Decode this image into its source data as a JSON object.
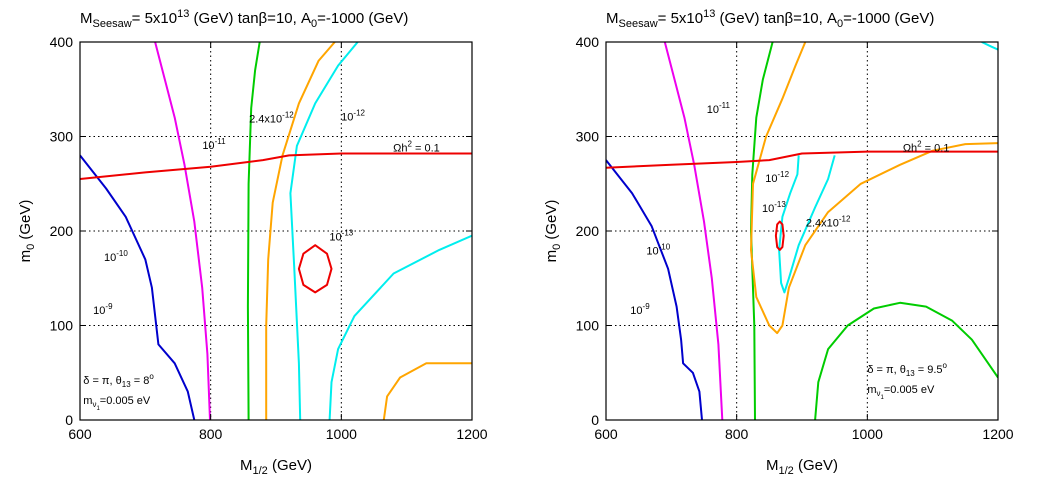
{
  "chart_data": [
    {
      "type": "line",
      "title": {
        "pre": "M",
        "sub": "Seesaw",
        "mid": "= 5x10",
        "sup": "13",
        "post": " (GeV) tanβ=10, A",
        "sub2": "0",
        "post2": "=-1000 (GeV)"
      },
      "xlabel": {
        "pre": "M",
        "sub": "1/2",
        "post": " (GeV)"
      },
      "ylabel": {
        "pre": "m",
        "sub": "0",
        "post": " (GeV)"
      },
      "xlim": [
        600,
        1200
      ],
      "ylim": [
        0,
        400
      ],
      "xticks": [
        "600",
        "800",
        "1000",
        "1200"
      ],
      "yticks": [
        "0",
        "100",
        "200",
        "300",
        "400"
      ],
      "grid": "dotted",
      "annotation": {
        "line1": "δ = π, θ",
        "line1_sub": "13",
        "line1_post": " = 8",
        "line1_sup": "o",
        "line2_pre": "m",
        "line2_sub": "ν",
        "line2_subsub": "1",
        "line2_post": "=0.005 eV"
      },
      "series": [
        {
          "color": "#0000cc",
          "points": [
            [
              600,
              280
            ],
            [
              640,
              245
            ],
            [
              670,
              215
            ],
            [
              700,
              170
            ],
            [
              710,
              140
            ],
            [
              720,
              80
            ],
            [
              745,
              60
            ],
            [
              765,
              30
            ],
            [
              775,
              0
            ]
          ]
        },
        {
          "color": "#ee00ee",
          "points": [
            [
              715,
              400
            ],
            [
              730,
              360
            ],
            [
              745,
              320
            ],
            [
              760,
              270
            ],
            [
              775,
              210
            ],
            [
              787,
              140
            ],
            [
              795,
              70
            ],
            [
              799,
              0
            ]
          ]
        },
        {
          "color": "#00cc00",
          "points": [
            [
              858,
              0
            ],
            [
              857,
              120
            ],
            [
              858,
              250
            ],
            [
              862,
              330
            ],
            [
              868,
              370
            ],
            [
              875,
              400
            ]
          ]
        },
        {
          "color": "#ffa500",
          "points": [
            [
              885,
              0
            ],
            [
              885,
              100
            ],
            [
              888,
              170
            ],
            [
              895,
              230
            ],
            [
              910,
              280
            ],
            [
              935,
              335
            ],
            [
              965,
              380
            ],
            [
              990,
              400
            ]
          ]
        },
        {
          "color": "#ffa500",
          "points": [
            [
              1065,
              0
            ],
            [
              1070,
              25
            ],
            [
              1090,
              45
            ],
            [
              1130,
              60
            ],
            [
              1200,
              60
            ]
          ]
        },
        {
          "color": "#00eeee",
          "points": [
            [
              937,
              0
            ],
            [
              935,
              60
            ],
            [
              928,
              160
            ],
            [
              922,
              240
            ],
            [
              932,
              290
            ],
            [
              960,
              335
            ],
            [
              995,
              375
            ],
            [
              1025,
              400
            ]
          ]
        },
        {
          "color": "#00eeee",
          "points": [
            [
              982,
              0
            ],
            [
              985,
              40
            ],
            [
              995,
              75
            ],
            [
              1020,
              110
            ],
            [
              1080,
              155
            ],
            [
              1150,
              180
            ],
            [
              1200,
              195
            ]
          ]
        },
        {
          "color": "#ee0000",
          "points": [
            [
              600,
              255
            ],
            [
              700,
              262
            ],
            [
              800,
              268
            ],
            [
              880,
              275
            ],
            [
              920,
              280
            ],
            [
              1000,
              282
            ],
            [
              1200,
              282
            ]
          ]
        },
        {
          "color": "#ee0000",
          "closed": true,
          "points": [
            [
              960,
              185
            ],
            [
              978,
              176
            ],
            [
              985,
              160
            ],
            [
              978,
              143
            ],
            [
              960,
              135
            ],
            [
              942,
              143
            ],
            [
              935,
              160
            ],
            [
              942,
              176
            ]
          ]
        }
      ],
      "labels": [
        {
          "x": 635,
          "y": 112,
          "base": "10",
          "exp": "-9"
        },
        {
          "x": 655,
          "y": 168,
          "base": "10",
          "exp": "-10"
        },
        {
          "x": 805,
          "y": 287,
          "base": "10",
          "exp": "-11"
        },
        {
          "x": 893,
          "y": 315,
          "base": "2.4x10",
          "exp": "-12"
        },
        {
          "x": 1018,
          "y": 317,
          "base": "10",
          "exp": "-12"
        },
        {
          "x": 1000,
          "y": 190,
          "base": "10",
          "exp": "-13"
        },
        {
          "x": 1115,
          "y": 284,
          "base": "Ωh",
          "exp": "2",
          "post": " = 0.1"
        }
      ]
    },
    {
      "type": "line",
      "title": {
        "pre": "M",
        "sub": "Seesaw",
        "mid": "= 5x10",
        "sup": "13",
        "post": " (GeV) tanβ=10, A",
        "sub2": "0",
        "post2": "=-1000 (GeV)"
      },
      "xlabel": {
        "pre": "M",
        "sub": "1/2",
        "post": " (GeV)"
      },
      "ylabel": {
        "pre": "m",
        "sub": "0",
        "post": " (GeV)"
      },
      "xlim": [
        600,
        1200
      ],
      "ylim": [
        0,
        400
      ],
      "xticks": [
        "600",
        "800",
        "1000",
        "1200"
      ],
      "yticks": [
        "0",
        "100",
        "200",
        "300",
        "400"
      ],
      "grid": "dotted",
      "annotation": {
        "line1": "δ = π, θ",
        "line1_sub": "13",
        "line1_post": " = 9.5",
        "line1_sup": "o",
        "line2_pre": "m",
        "line2_sub": "ν",
        "line2_subsub": "1",
        "line2_post": "=0.005 eV"
      },
      "series": [
        {
          "color": "#0000cc",
          "points": [
            [
              600,
              275
            ],
            [
              640,
              240
            ],
            [
              670,
              205
            ],
            [
              695,
              160
            ],
            [
              708,
              120
            ],
            [
              715,
              85
            ],
            [
              718,
              60
            ],
            [
              733,
              50
            ],
            [
              743,
              30
            ],
            [
              747,
              0
            ]
          ]
        },
        {
          "color": "#ee00ee",
          "points": [
            [
              690,
              400
            ],
            [
              705,
              360
            ],
            [
              720,
              320
            ],
            [
              735,
              270
            ],
            [
              750,
              210
            ],
            [
              762,
              150
            ],
            [
              772,
              80
            ],
            [
              778,
              0
            ]
          ]
        },
        {
          "color": "#00cc00",
          "points": [
            [
              828,
              0
            ],
            [
              827,
              100
            ],
            [
              822,
              200
            ],
            [
              824,
              260
            ],
            [
              830,
              320
            ],
            [
              840,
              360
            ],
            [
              855,
              400
            ]
          ]
        },
        {
          "color": "#ffa500",
          "points": [
            [
              905,
              400
            ],
            [
              890,
              375
            ],
            [
              870,
              340
            ],
            [
              845,
              300
            ],
            [
              825,
              250
            ],
            [
              822,
              180
            ],
            [
              830,
              130
            ],
            [
              850,
              100
            ],
            [
              862,
              92
            ],
            [
              870,
              100
            ],
            [
              880,
              140
            ],
            [
              905,
              185
            ],
            [
              940,
              220
            ],
            [
              990,
              250
            ],
            [
              1050,
              270
            ],
            [
              1100,
              285
            ],
            [
              1150,
              292
            ],
            [
              1200,
              293
            ]
          ]
        },
        {
          "color": "#00eeee",
          "points": [
            [
              895,
              280
            ],
            [
              893,
              260
            ],
            [
              882,
              240
            ],
            [
              870,
              215
            ],
            [
              865,
              180
            ],
            [
              868,
              145
            ],
            [
              873,
              135
            ],
            [
              880,
              150
            ],
            [
              895,
              185
            ],
            [
              920,
              225
            ],
            [
              940,
              255
            ],
            [
              950,
              280
            ]
          ]
        },
        {
          "color": "#00eeee",
          "points": [
            [
              1175,
              400
            ],
            [
              1190,
              395
            ],
            [
              1200,
              392
            ]
          ]
        },
        {
          "color": "#00cc00",
          "points": [
            [
              920,
              0
            ],
            [
              925,
              40
            ],
            [
              940,
              75
            ],
            [
              970,
              100
            ],
            [
              1010,
              118
            ],
            [
              1050,
              124
            ],
            [
              1090,
              120
            ],
            [
              1130,
              105
            ],
            [
              1160,
              85
            ],
            [
              1185,
              60
            ],
            [
              1200,
              45
            ]
          ]
        },
        {
          "color": "#ee0000",
          "points": [
            [
              600,
              267
            ],
            [
              700,
              270
            ],
            [
              800,
              273
            ],
            [
              850,
              275
            ],
            [
              900,
              282
            ],
            [
              1000,
              284
            ],
            [
              1200,
              284
            ]
          ]
        },
        {
          "color": "#ee0000",
          "closed": true,
          "points": [
            [
              866,
              210
            ],
            [
              870,
              207
            ],
            [
              872,
              195
            ],
            [
              870,
              183
            ],
            [
              866,
              180
            ],
            [
              862,
              183
            ],
            [
              860,
              195
            ],
            [
              862,
              207
            ]
          ]
        }
      ],
      "labels": [
        {
          "x": 652,
          "y": 112,
          "base": "10",
          "exp": "-9"
        },
        {
          "x": 680,
          "y": 175,
          "base": "10",
          "exp": "-10"
        },
        {
          "x": 772,
          "y": 325,
          "base": "10",
          "exp": "-11"
        },
        {
          "x": 862,
          "y": 252,
          "base": "10",
          "exp": "-12"
        },
        {
          "x": 857,
          "y": 220,
          "base": "10",
          "exp": "-13"
        },
        {
          "x": 940,
          "y": 205,
          "base": "2.4x10",
          "exp": "-12"
        },
        {
          "x": 1090,
          "y": 284,
          "base": "Ωh",
          "exp": "2",
          "post": " = 0.1"
        }
      ]
    }
  ]
}
